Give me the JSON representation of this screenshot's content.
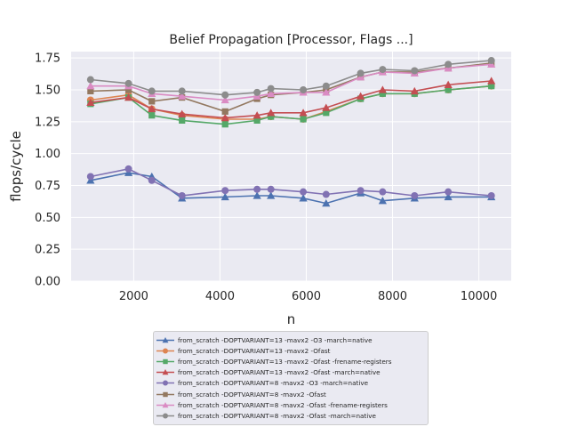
{
  "chart_data": {
    "type": "line",
    "title": "Belief Propagation [Processor, Flags ...]",
    "xlabel": "n",
    "ylabel": "flops/cycle",
    "xlim": [
      550,
      10750
    ],
    "ylim": [
      0,
      1.8
    ],
    "xticks": [
      "2000",
      "4000",
      "6000",
      "8000",
      "10000"
    ],
    "yticks": [
      "0.00",
      "0.25",
      "0.50",
      "0.75",
      "1.00",
      "1.25",
      "1.50",
      "1.75"
    ],
    "grid": true,
    "legend_position": "below",
    "x": [
      1000,
      1880,
      2420,
      3120,
      4120,
      4860,
      5180,
      5930,
      6460,
      7260,
      7770,
      8510,
      9290,
      10290
    ],
    "series": [
      {
        "name": "from_scratch -DOPTVARIANT=13 -mavx2 -O3 -march=native",
        "color": "#4c72b0",
        "marker": "triangle",
        "values": [
          0.79,
          0.85,
          0.82,
          0.65,
          0.66,
          0.67,
          0.67,
          0.65,
          0.61,
          0.69,
          0.63,
          0.65,
          0.66,
          0.66
        ]
      },
      {
        "name": "from_scratch -DOPTVARIANT=13 -mavx2 -Ofast",
        "color": "#dd8452",
        "marker": "circle",
        "values": [
          1.42,
          1.46,
          1.35,
          1.3,
          1.27,
          1.27,
          1.29,
          1.27,
          1.33,
          1.43,
          1.47,
          1.47,
          1.5,
          1.53
        ]
      },
      {
        "name": "from_scratch -DOPTVARIANT=13 -mavx2 -Ofast -frename-registers",
        "color": "#55a868",
        "marker": "square",
        "values": [
          1.39,
          1.44,
          1.3,
          1.26,
          1.23,
          1.26,
          1.29,
          1.27,
          1.32,
          1.43,
          1.47,
          1.47,
          1.5,
          1.53
        ]
      },
      {
        "name": "from_scratch -DOPTVARIANT=13 -mavx2 -Ofast -march=native",
        "color": "#c44e52",
        "marker": "triangle",
        "values": [
          1.4,
          1.44,
          1.35,
          1.31,
          1.28,
          1.3,
          1.32,
          1.32,
          1.36,
          1.45,
          1.5,
          1.49,
          1.54,
          1.57
        ]
      },
      {
        "name": "from_scratch -DOPTVARIANT=8 -mavx2 -O3 -march=native",
        "color": "#8172b3",
        "marker": "circle",
        "values": [
          0.82,
          0.88,
          0.79,
          0.67,
          0.71,
          0.72,
          0.72,
          0.7,
          0.68,
          0.71,
          0.7,
          0.67,
          0.7,
          0.67
        ]
      },
      {
        "name": "from_scratch -DOPTVARIANT=8 -mavx2 -Ofast",
        "color": "#937860",
        "marker": "square",
        "values": [
          1.49,
          1.5,
          1.41,
          1.44,
          1.33,
          1.43,
          1.46,
          1.48,
          1.5,
          1.6,
          1.64,
          1.64,
          1.67,
          1.71
        ]
      },
      {
        "name": "from_scratch -DOPTVARIANT=8 -mavx2 -Ofast -frename-registers",
        "color": "#da8bc3",
        "marker": "triangle",
        "values": [
          1.53,
          1.53,
          1.47,
          1.45,
          1.42,
          1.45,
          1.47,
          1.48,
          1.48,
          1.6,
          1.64,
          1.63,
          1.67,
          1.7
        ]
      },
      {
        "name": "from_scratch -DOPTVARIANT=8 -mavx2 -Ofast -march=native",
        "color": "#8c8c8c",
        "marker": "circle",
        "values": [
          1.58,
          1.55,
          1.49,
          1.49,
          1.46,
          1.48,
          1.51,
          1.5,
          1.53,
          1.63,
          1.66,
          1.65,
          1.7,
          1.73
        ]
      }
    ]
  }
}
